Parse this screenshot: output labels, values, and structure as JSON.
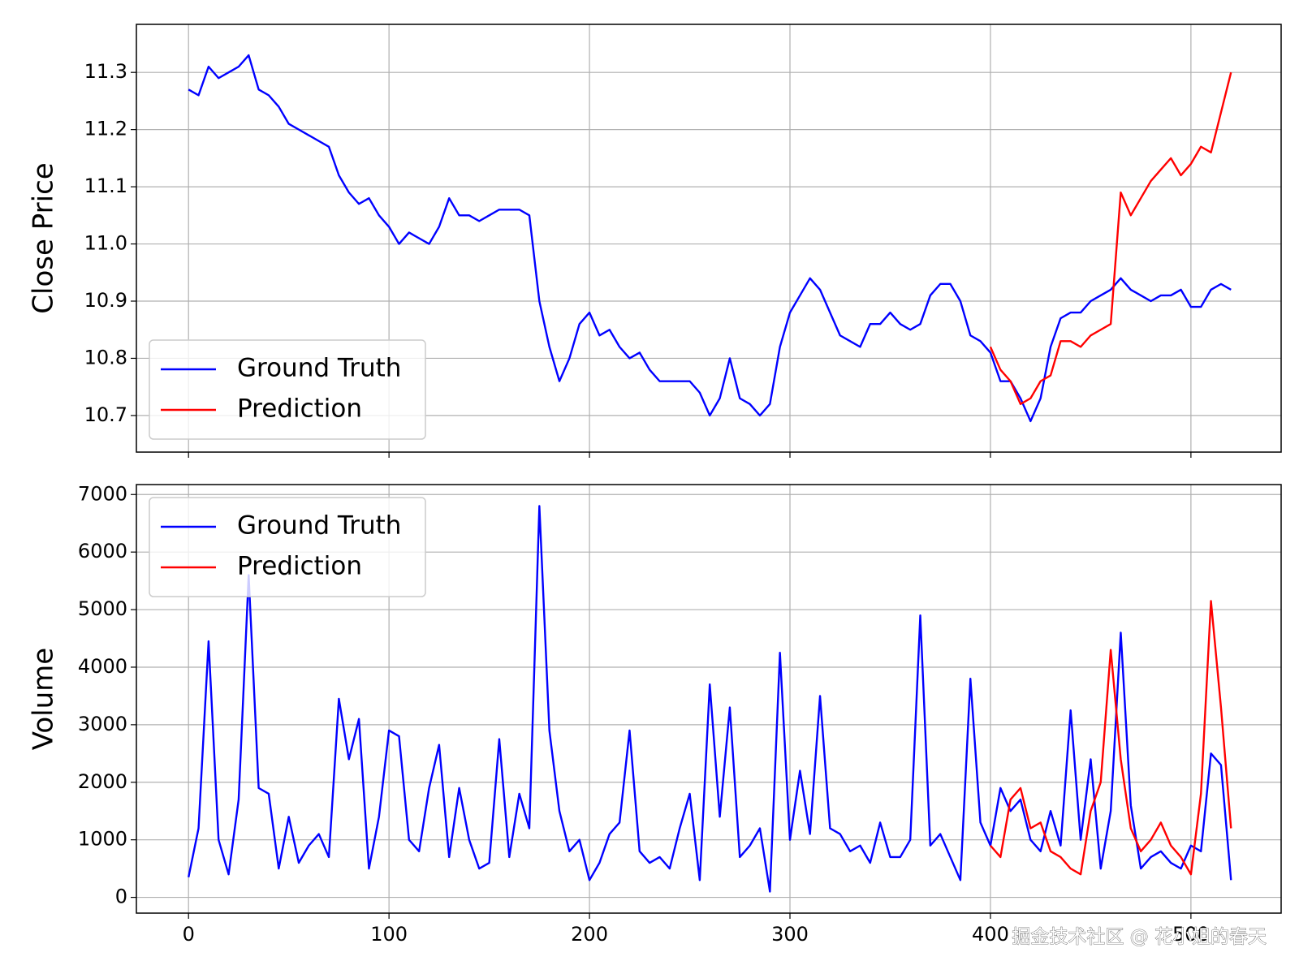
{
  "chart_data": [
    {
      "type": "line",
      "ylabel": "Close Price",
      "grid": true,
      "legend": "lower left",
      "xlim": [
        -26,
        545
      ],
      "ylim": [
        10.636,
        11.384
      ],
      "xticks": [
        0,
        100,
        200,
        300,
        400,
        500
      ],
      "yticks": [
        10.7,
        10.8,
        10.9,
        {
          "value": 11,
          "label": "11.0"
        },
        11.1,
        11.2,
        11.3
      ],
      "series": [
        {
          "name": "Ground Truth",
          "color": "#0000ff",
          "x": [
            0,
            5,
            10,
            15,
            20,
            25,
            30,
            35,
            40,
            45,
            50,
            55,
            60,
            65,
            70,
            75,
            80,
            85,
            90,
            95,
            100,
            105,
            110,
            115,
            120,
            125,
            130,
            135,
            140,
            145,
            150,
            155,
            160,
            165,
            170,
            175,
            180,
            185,
            190,
            195,
            200,
            205,
            210,
            215,
            220,
            225,
            230,
            235,
            240,
            245,
            250,
            255,
            260,
            265,
            270,
            275,
            280,
            285,
            290,
            295,
            300,
            305,
            310,
            315,
            320,
            325,
            330,
            335,
            340,
            345,
            350,
            355,
            360,
            365,
            370,
            375,
            380,
            385,
            390,
            395,
            400,
            405,
            410,
            415,
            420,
            425,
            430,
            435,
            440,
            445,
            450,
            455,
            460,
            465,
            470,
            475,
            480,
            485,
            490,
            495,
            500,
            505,
            510,
            515,
            520
          ],
          "values": [
            11.27,
            11.26,
            11.31,
            11.29,
            11.3,
            11.31,
            11.33,
            11.27,
            11.26,
            11.24,
            11.21,
            11.2,
            11.19,
            11.18,
            11.17,
            11.12,
            11.09,
            11.07,
            11.08,
            11.05,
            11.03,
            11.0,
            11.02,
            11.01,
            11.0,
            11.03,
            11.08,
            11.05,
            11.05,
            11.04,
            11.05,
            11.06,
            11.06,
            11.06,
            11.05,
            10.9,
            10.82,
            10.76,
            10.8,
            10.86,
            10.88,
            10.84,
            10.85,
            10.82,
            10.8,
            10.81,
            10.78,
            10.76,
            10.76,
            10.76,
            10.76,
            10.74,
            10.7,
            10.73,
            10.8,
            10.73,
            10.72,
            10.7,
            10.72,
            10.82,
            10.88,
            10.91,
            10.94,
            10.92,
            10.88,
            10.84,
            10.83,
            10.82,
            10.86,
            10.86,
            10.88,
            10.86,
            10.85,
            10.86,
            10.91,
            10.93,
            10.93,
            10.9,
            10.84,
            10.83,
            10.81,
            10.76,
            10.76,
            10.73,
            10.69,
            10.73,
            10.82,
            10.87,
            10.88,
            10.88,
            10.9,
            10.91,
            10.92,
            10.94,
            10.92,
            10.91,
            10.9,
            10.91,
            10.91,
            10.92,
            10.89,
            10.89,
            10.92,
            10.93,
            10.92
          ]
        },
        {
          "name": "Prediction",
          "color": "#ff0000",
          "x": [
            400,
            405,
            410,
            415,
            420,
            425,
            430,
            435,
            440,
            445,
            450,
            455,
            460,
            465,
            470,
            475,
            480,
            485,
            490,
            495,
            500,
            505,
            510,
            515,
            520
          ],
          "values": [
            10.82,
            10.78,
            10.76,
            10.72,
            10.73,
            10.76,
            10.77,
            10.83,
            10.83,
            10.82,
            10.84,
            10.85,
            10.86,
            11.09,
            11.05,
            11.08,
            11.11,
            11.13,
            11.15,
            11.12,
            11.14,
            11.17,
            11.16,
            11.23,
            11.3
          ]
        }
      ]
    },
    {
      "type": "line",
      "ylabel": "Volume",
      "grid": true,
      "legend": "upper left",
      "xlim": [
        -26,
        545
      ],
      "ylim": [
        -274,
        7173
      ],
      "xticks": [
        0,
        100,
        200,
        300,
        400,
        500
      ],
      "yticks": [
        0,
        1000,
        2000,
        3000,
        4000,
        5000,
        6000,
        7000
      ],
      "series": [
        {
          "name": "Ground Truth",
          "color": "#0000ff",
          "x": [
            0,
            5,
            10,
            15,
            20,
            25,
            30,
            35,
            40,
            45,
            50,
            55,
            60,
            65,
            70,
            75,
            80,
            85,
            90,
            95,
            100,
            105,
            110,
            115,
            120,
            125,
            130,
            135,
            140,
            145,
            150,
            155,
            160,
            165,
            170,
            175,
            180,
            185,
            190,
            195,
            200,
            205,
            210,
            215,
            220,
            225,
            230,
            235,
            240,
            245,
            250,
            255,
            260,
            265,
            270,
            275,
            280,
            285,
            290,
            295,
            300,
            305,
            310,
            315,
            320,
            325,
            330,
            335,
            340,
            345,
            350,
            355,
            360,
            365,
            370,
            375,
            380,
            385,
            390,
            395,
            400,
            405,
            410,
            415,
            420,
            425,
            430,
            435,
            440,
            445,
            450,
            455,
            460,
            465,
            470,
            475,
            480,
            485,
            490,
            495,
            500,
            505,
            510,
            515,
            520
          ],
          "values": [
            350,
            1200,
            4450,
            1000,
            400,
            1700,
            5600,
            1900,
            1800,
            500,
            1400,
            600,
            900,
            1100,
            700,
            3450,
            2400,
            3100,
            500,
            1400,
            2900,
            2800,
            1000,
            800,
            1900,
            2650,
            700,
            1900,
            1000,
            500,
            600,
            2750,
            700,
            1800,
            1200,
            6800,
            2900,
            1500,
            800,
            1000,
            300,
            600,
            1100,
            1300,
            2900,
            800,
            600,
            700,
            500,
            1200,
            1800,
            300,
            3700,
            1400,
            3300,
            700,
            900,
            1200,
            100,
            4250,
            1000,
            2200,
            1100,
            3500,
            1200,
            1100,
            800,
            900,
            600,
            1300,
            700,
            700,
            1000,
            4900,
            900,
            1100,
            700,
            300,
            3800,
            1300,
            900,
            1900,
            1500,
            1700,
            1000,
            800,
            1500,
            900,
            3250,
            1000,
            2400,
            500,
            1500,
            4600,
            1600,
            500,
            700,
            800,
            600,
            500,
            900,
            800,
            2500,
            2300,
            300
          ]
        },
        {
          "name": "Prediction",
          "color": "#ff0000",
          "x": [
            400,
            405,
            410,
            415,
            420,
            425,
            430,
            435,
            440,
            445,
            450,
            455,
            460,
            465,
            470,
            475,
            480,
            485,
            490,
            495,
            500,
            505,
            510,
            515,
            520
          ],
          "values": [
            900,
            700,
            1700,
            1900,
            1200,
            1300,
            800,
            700,
            500,
            400,
            1500,
            2000,
            4300,
            2400,
            1200,
            800,
            1000,
            1300,
            900,
            700,
            400,
            1800,
            5150,
            3300,
            1200
          ]
        }
      ]
    }
  ],
  "watermark": "掘金技术社区 @ 花小姐的春天"
}
